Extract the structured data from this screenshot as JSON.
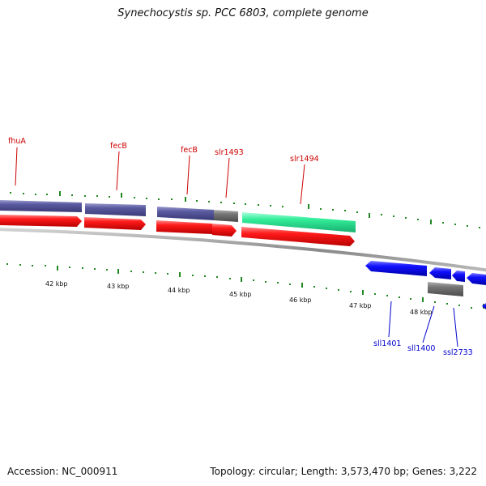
{
  "title": "Synechocystis sp. PCC 6803, complete genome",
  "footer": {
    "accession": "Accession: NC_000911",
    "summary": "Topology: circular; Length: 3,573,470 bp; Genes: 3,222"
  },
  "colors": {
    "forward_cds": "#ff0000",
    "reverse_cds": "#0000ff",
    "gene_bar": "#5a5a9e",
    "rna_bar": "#696969",
    "highlight_gene": "#33ee99",
    "forward_label": "#cc0000",
    "reverse_label": "#0000cc",
    "tick": "#228822",
    "backbone": "#999999"
  },
  "kbp_ticks": [
    "42 kbp",
    "43 kbp",
    "44 kbp",
    "45 kbp",
    "46 kbp",
    "47 kbp",
    "48 kbp"
  ],
  "forward_genes": [
    {
      "name": "fhuA"
    },
    {
      "name": "fecB"
    },
    {
      "name": "fecB"
    },
    {
      "name": "slr1493"
    },
    {
      "name": "slr1494"
    }
  ],
  "reverse_genes": [
    {
      "name": "sll1401"
    },
    {
      "name": "sll1400"
    },
    {
      "name": "ssl2733"
    }
  ]
}
